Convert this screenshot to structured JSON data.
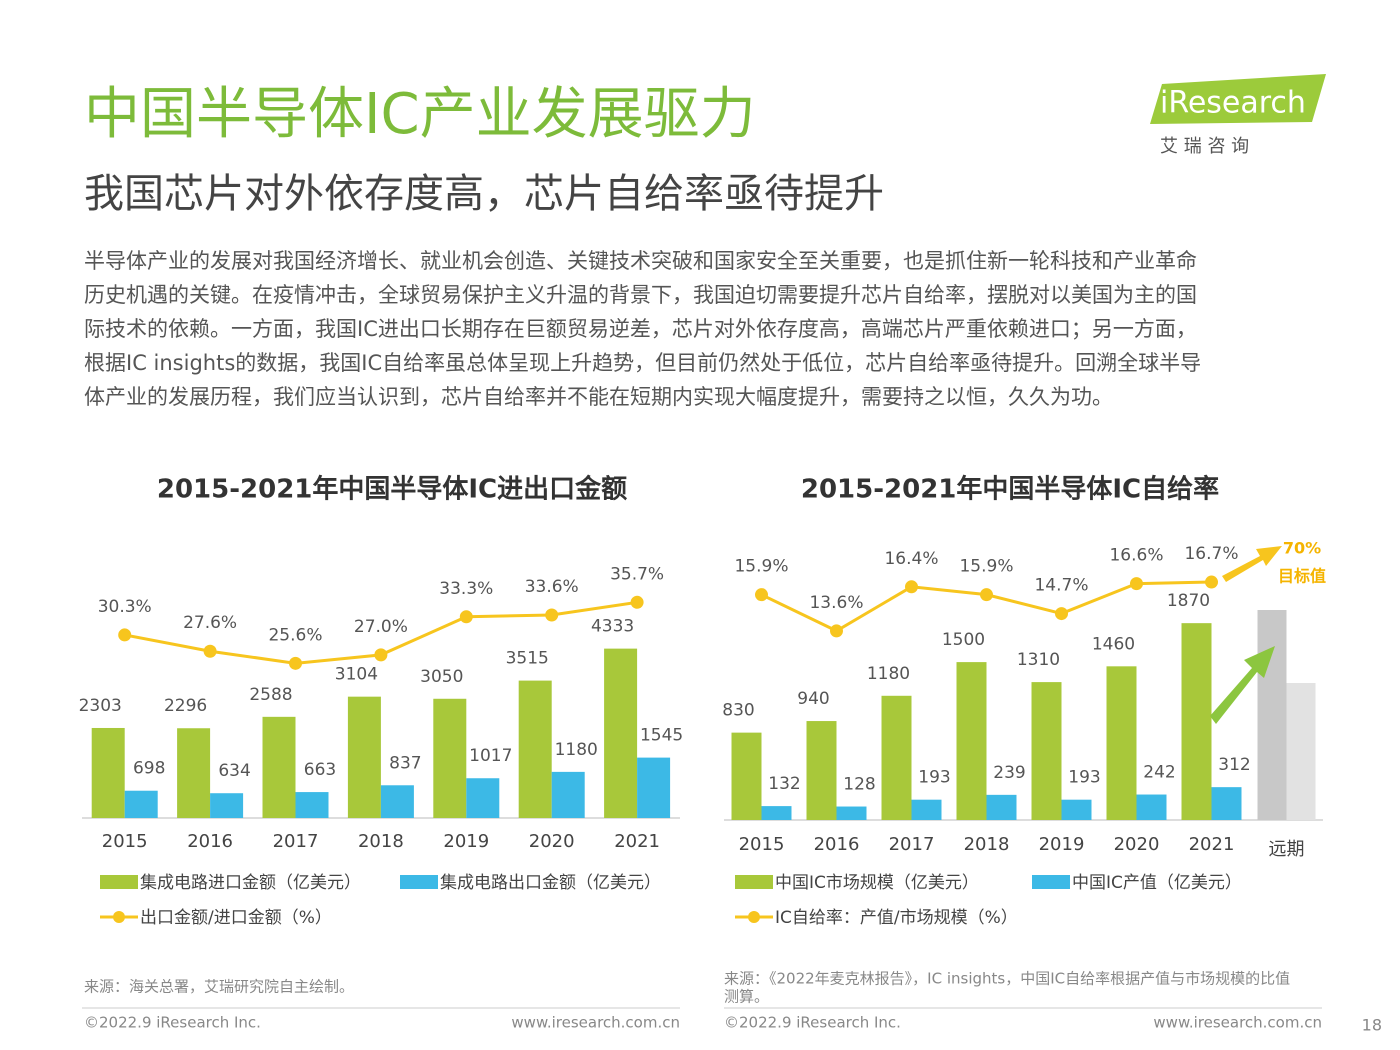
{
  "header": {
    "title": "中国半导体IC产业发展驱力",
    "subtitle": "我国芯片对外依存度高，芯片自给率亟待提升",
    "logo": "iResearch",
    "logo_sub": "艾  瑞  咨  询"
  },
  "body": [
    "半导体产业的发展对我国经济增长、就业机会创造、关键技术突破和国家安全至关重要，也是抓住新一轮科技和产业革命",
    "历史机遇的关键。在疫情冲击，全球贸易保护主义升温的背景下，我国迫切需要提升芯片自给率，摆脱对以美国为主的国",
    "际技术的依赖。一方面，我国IC进出口长期存在巨额贸易逆差，芯片对外依存度高，高端芯片严重依赖进口；另一方面，",
    "根据IC insights的数据，我国IC自给率虽总体呈现上升趋势，但目前仍然处于低位，芯片自给率亟待提升。回溯全球半导",
    "体产业的发展历程，我们应当认识到，芯片自给率并不能在短期内实现大幅度提升，需要持之以恒，久久为功。"
  ],
  "chart_data": [
    {
      "type": "bar",
      "title": "2015-2021年中国半导体IC进出口金额",
      "categories": [
        "2015",
        "2016",
        "2017",
        "2018",
        "2019",
        "2020",
        "2021"
      ],
      "series": [
        {
          "name": "集成电路进口金额（亿美元）",
          "color": "#a8c83a",
          "values": [
            2303,
            2296,
            2588,
            3104,
            3050,
            3515,
            4333
          ]
        },
        {
          "name": "集成电路出口金额（亿美元）",
          "color": "#3cb9e6",
          "values": [
            698,
            634,
            663,
            837,
            1017,
            1180,
            1545
          ]
        },
        {
          "name": "出口金额/进口金额（%）",
          "color": "#f7c51e",
          "type": "line",
          "axis": "y2",
          "values": [
            30.3,
            27.6,
            25.6,
            27.0,
            33.3,
            33.6,
            35.7
          ],
          "value_labels": [
            "30.3%",
            "27.6%",
            "25.6%",
            "27.0%",
            "33.3%",
            "33.6%",
            "35.7%"
          ]
        }
      ],
      "ylim": [
        0,
        6600
      ],
      "y2lim": [
        0,
        42.7
      ],
      "source": "来源：海关总署，艾瑞研究院自主绘制。"
    },
    {
      "type": "bar",
      "title": "2015-2021年中国半导体IC自给率",
      "categories": [
        "2015",
        "2016",
        "2017",
        "2018",
        "2019",
        "2020",
        "2021"
      ],
      "extra_category": "远期",
      "series": [
        {
          "name": "中国IC市场规模（亿美元）",
          "color": "#a8c83a",
          "values": [
            830,
            940,
            1180,
            1500,
            1310,
            1460,
            1870
          ]
        },
        {
          "name": "中国IC产值（亿美元）",
          "color": "#3cb9e6",
          "values": [
            132,
            128,
            193,
            239,
            193,
            242,
            312
          ]
        },
        {
          "name": "IC自给率：产值/市场规模（%）",
          "color": "#f7c51e",
          "type": "line",
          "axis": "y2",
          "values": [
            15.9,
            13.6,
            16.4,
            15.9,
            14.7,
            16.6,
            16.7
          ],
          "value_labels": [
            "15.9%",
            "13.6%",
            "16.4%",
            "15.9%",
            "14.7%",
            "16.6%",
            "16.7%"
          ]
        }
      ],
      "ylim": [
        0,
        2470
      ],
      "y2lim": [
        1.6,
        18.1
      ],
      "annotations": [
        "70%",
        "目标值"
      ],
      "source": [
        "来源：《2022年麦克林报告》，IC insights，中国IC自给率根据产值与市场规模的比值",
        "测算。"
      ]
    }
  ],
  "footer": {
    "copyright": "©2022.9 iResearch Inc.",
    "url": "www.iresearch.com.cn",
    "page": "18"
  }
}
